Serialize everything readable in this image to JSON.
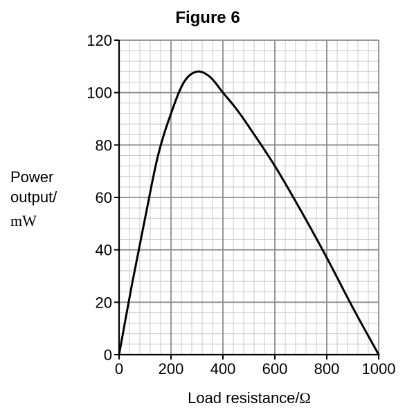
{
  "chart_data": {
    "type": "line",
    "title": "Figure 6",
    "xlabel": "Load resistance/",
    "xlabel_unit": "Ω",
    "ylabel_lines": [
      "Power",
      "output/"
    ],
    "ylabel_unit": "mW",
    "xlim": [
      0,
      1000
    ],
    "ylim": [
      0,
      120
    ],
    "x_ticks": [
      0,
      200,
      400,
      600,
      800,
      1000
    ],
    "y_ticks": [
      0,
      20,
      40,
      60,
      80,
      100,
      120
    ],
    "grid": true,
    "grid_major_x": 200,
    "grid_minor_x": 40,
    "grid_major_y": 20,
    "grid_minor_y": 4,
    "series": [
      {
        "color": "#000000",
        "x": [
          0,
          50,
          100,
          150,
          200,
          250,
          300,
          350,
          400,
          450,
          500,
          600,
          700,
          800,
          900,
          1000
        ],
        "y": [
          0,
          27,
          52,
          76,
          92,
          104,
          108,
          106,
          100,
          94,
          87,
          72,
          55,
          37,
          18,
          0
        ]
      }
    ]
  }
}
